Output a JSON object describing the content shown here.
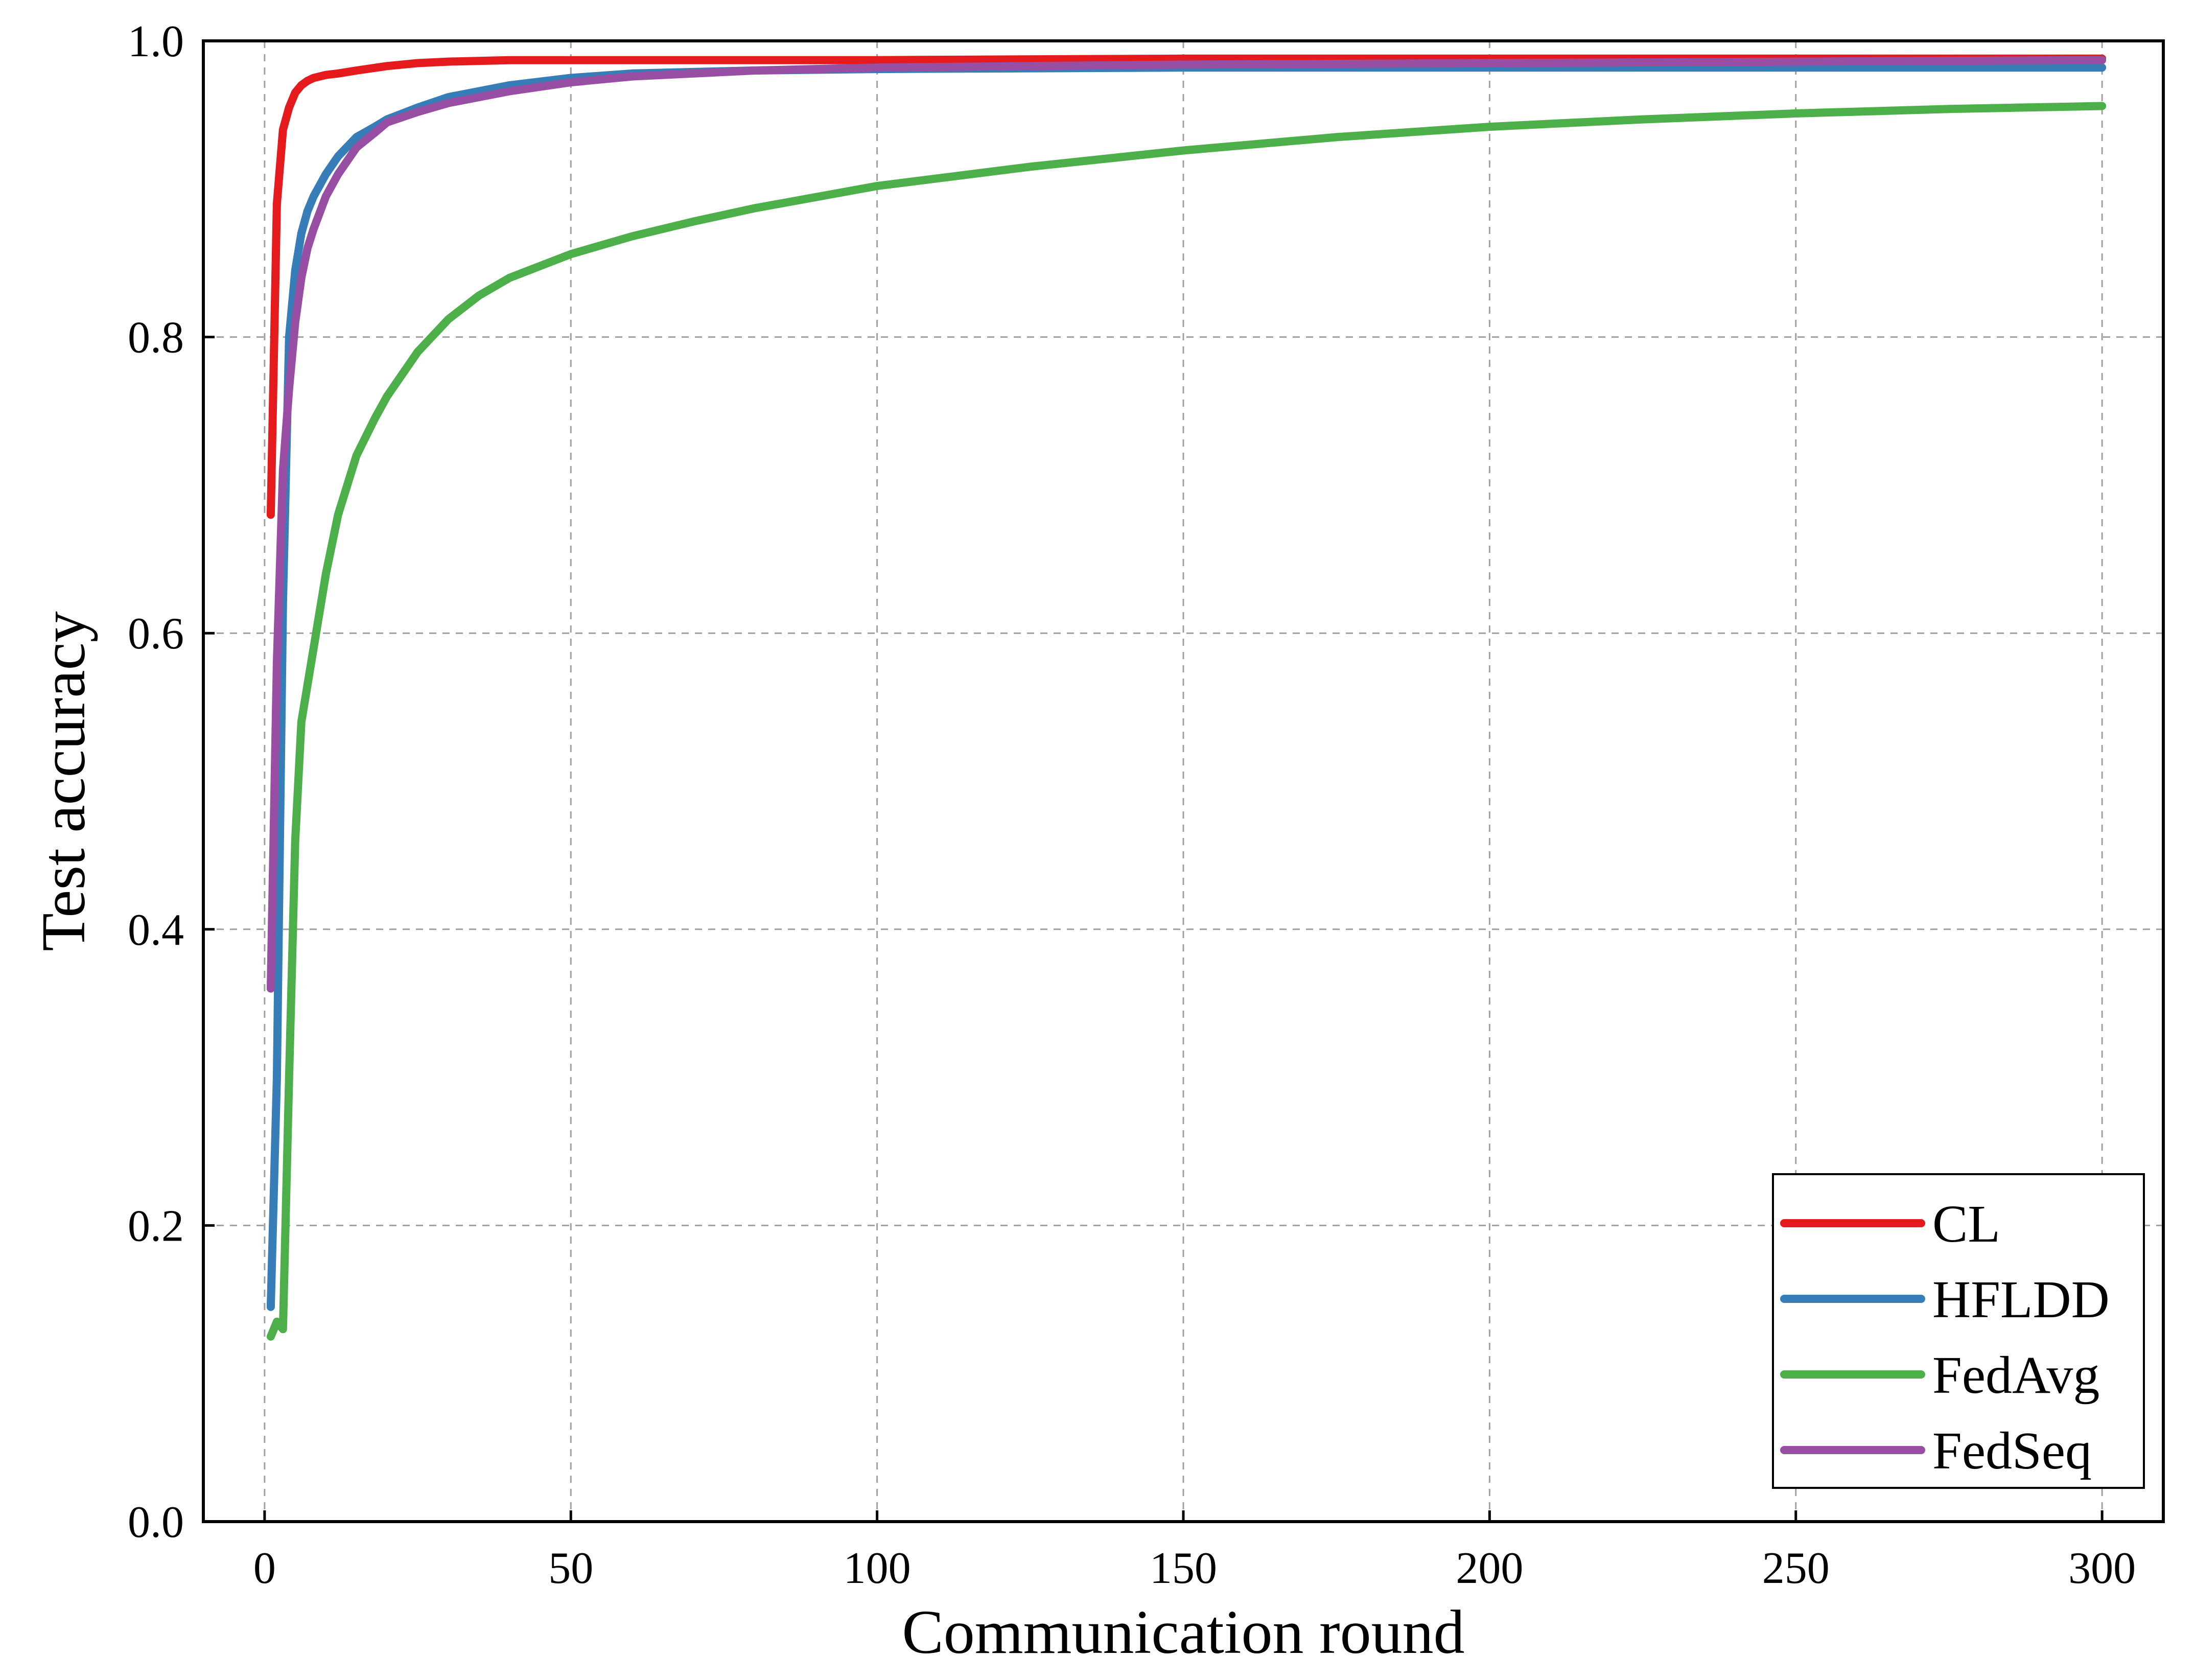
{
  "chart_data": {
    "type": "line",
    "xlabel": "Communication round",
    "ylabel": "Test accuracy",
    "xlim": [
      -10,
      310
    ],
    "ylim": [
      0.0,
      1.0
    ],
    "x_ticks": [
      0,
      50,
      100,
      150,
      200,
      250,
      300
    ],
    "x_tick_labels": [
      "0",
      "50",
      "100",
      "150",
      "200",
      "250",
      "300"
    ],
    "y_ticks": [
      0.0,
      0.2,
      0.4,
      0.6,
      0.8,
      1.0
    ],
    "y_tick_labels": [
      "0.0",
      "0.2",
      "0.4",
      "0.6",
      "0.8",
      "1.0"
    ],
    "grid": true,
    "legend_position": "bottom-right",
    "series": [
      {
        "name": "CL",
        "color": "#e41a1c",
        "x": [
          1,
          2,
          3,
          4,
          5,
          6,
          7,
          8,
          10,
          12,
          15,
          20,
          25,
          30,
          40,
          50,
          60,
          80,
          100,
          150,
          200,
          250,
          300
        ],
        "y": [
          0.68,
          0.89,
          0.94,
          0.955,
          0.965,
          0.97,
          0.973,
          0.975,
          0.977,
          0.978,
          0.98,
          0.983,
          0.985,
          0.986,
          0.987,
          0.987,
          0.987,
          0.987,
          0.987,
          0.988,
          0.988,
          0.988,
          0.988
        ]
      },
      {
        "name": "HFLDD",
        "color": "#377eb8",
        "x": [
          1,
          2,
          3,
          4,
          5,
          6,
          7,
          8,
          10,
          12,
          15,
          18,
          20,
          25,
          30,
          40,
          50,
          60,
          80,
          100,
          150,
          200,
          250,
          300
        ],
        "y": [
          0.145,
          0.3,
          0.62,
          0.8,
          0.845,
          0.87,
          0.885,
          0.895,
          0.91,
          0.922,
          0.935,
          0.942,
          0.947,
          0.955,
          0.962,
          0.97,
          0.975,
          0.978,
          0.98,
          0.981,
          0.982,
          0.982,
          0.982,
          0.982
        ]
      },
      {
        "name": "FedAvg",
        "color": "#4daf4a",
        "x": [
          1,
          2,
          3,
          4,
          5,
          6,
          7,
          8,
          10,
          12,
          15,
          18,
          20,
          25,
          30,
          35,
          40,
          50,
          60,
          70,
          80,
          100,
          125,
          150,
          175,
          200,
          225,
          250,
          275,
          300
        ],
        "y": [
          0.125,
          0.135,
          0.13,
          0.3,
          0.46,
          0.54,
          0.565,
          0.59,
          0.64,
          0.68,
          0.72,
          0.745,
          0.76,
          0.79,
          0.812,
          0.828,
          0.84,
          0.856,
          0.868,
          0.878,
          0.887,
          0.902,
          0.915,
          0.926,
          0.935,
          0.942,
          0.947,
          0.951,
          0.954,
          0.956
        ]
      },
      {
        "name": "FedSeq",
        "color": "#984ea3",
        "x": [
          1,
          2,
          3,
          4,
          5,
          6,
          7,
          8,
          10,
          12,
          15,
          18,
          20,
          25,
          30,
          40,
          50,
          60,
          80,
          100,
          150,
          200,
          250,
          300
        ],
        "y": [
          0.36,
          0.58,
          0.71,
          0.765,
          0.81,
          0.84,
          0.86,
          0.873,
          0.895,
          0.91,
          0.928,
          0.938,
          0.945,
          0.952,
          0.958,
          0.966,
          0.972,
          0.976,
          0.98,
          0.982,
          0.984,
          0.985,
          0.986,
          0.987
        ]
      }
    ]
  }
}
